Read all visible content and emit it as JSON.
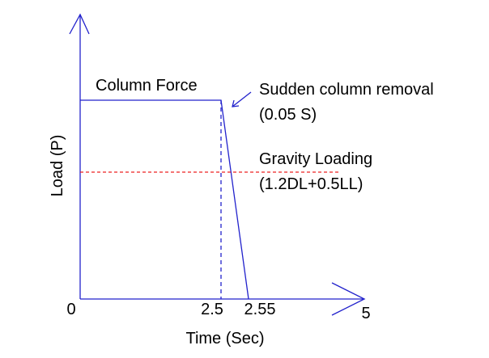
{
  "axes": {
    "y_label": "Load (P)",
    "x_label": "Time (Sec)",
    "x_tick_labels": [
      "0",
      "2.5",
      "2.55",
      "5"
    ]
  },
  "annotations": {
    "column_force": "Column Force",
    "removal_title": "Sudden column removal",
    "removal_time": "(0.05 S)",
    "gravity_title": "Gravity Loading",
    "gravity_combo": "(1.2DL+0.5LL)"
  }
}
